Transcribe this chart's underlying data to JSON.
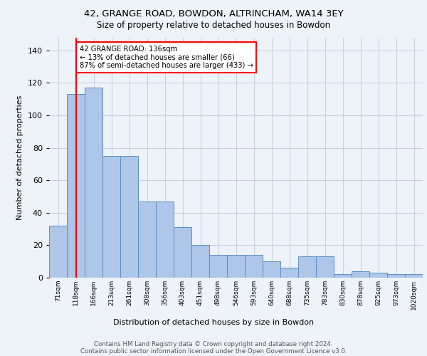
{
  "title_line1": "42, GRANGE ROAD, BOWDON, ALTRINCHAM, WA14 3EY",
  "title_line2": "Size of property relative to detached houses in Bowdon",
  "xlabel": "Distribution of detached houses by size in Bowdon",
  "ylabel": "Number of detached properties",
  "categories": [
    "71sqm",
    "118sqm",
    "166sqm",
    "213sqm",
    "261sqm",
    "308sqm",
    "356sqm",
    "403sqm",
    "451sqm",
    "498sqm",
    "546sqm",
    "593sqm",
    "640sqm",
    "688sqm",
    "735sqm",
    "783sqm",
    "830sqm",
    "878sqm",
    "925sqm",
    "973sqm",
    "1020sqm"
  ],
  "values": [
    32,
    113,
    117,
    75,
    75,
    47,
    47,
    31,
    20,
    14,
    14,
    14,
    10,
    6,
    13,
    13,
    2,
    4,
    3,
    2,
    2
  ],
  "bar_color": "#aec6e8",
  "bar_edge_color": "#5a8fc2",
  "bar_width": 1.0,
  "redline_x": 1,
  "annotation_text": "42 GRANGE ROAD: 136sqm\n← 13% of detached houses are smaller (66)\n87% of semi-detached houses are larger (433) →",
  "annotation_box_color": "white",
  "annotation_box_edge_color": "red",
  "ylim": [
    0,
    148
  ],
  "footer_line1": "Contains HM Land Registry data © Crown copyright and database right 2024.",
  "footer_line2": "Contains public sector information licensed under the Open Government Licence v3.0.",
  "background_color": "#eef2f9",
  "grid_color": "#c8d0e0"
}
